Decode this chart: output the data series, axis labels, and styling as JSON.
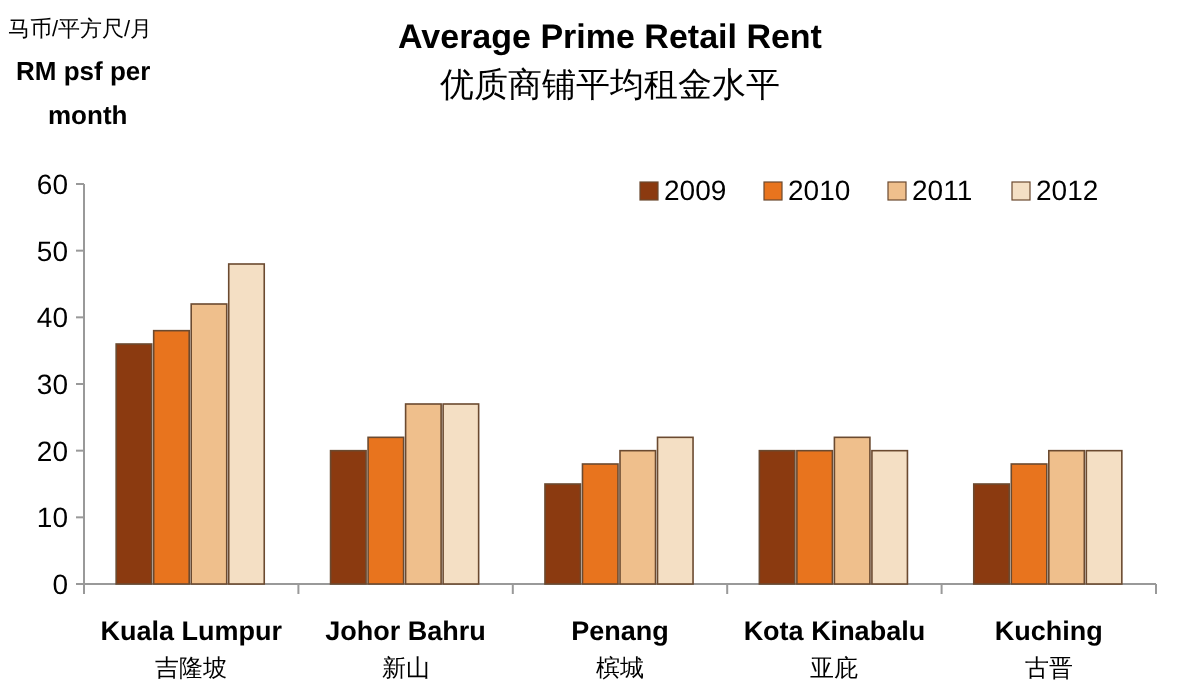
{
  "chart_data": {
    "type": "bar",
    "title": "Average Prime Retail Rent",
    "subtitle": "优质商铺平均租金水平",
    "ylabel": "马币/平方尺/月\nRM psf per\nmonth",
    "categories": [
      "Kuala Lumpur\n吉隆坡",
      "Johor Bahru\n新山",
      "Penang\n槟城",
      "Kota Kinabalu\n亚庇",
      "Kuching\n古晋"
    ],
    "series": [
      {
        "name": "2009",
        "color": "#8b3a10",
        "values": [
          36,
          20,
          15,
          20,
          15
        ]
      },
      {
        "name": "2010",
        "color": "#e8741e",
        "values": [
          38,
          22,
          18,
          20,
          18
        ]
      },
      {
        "name": "2011",
        "color": "#efbf8c",
        "values": [
          42,
          27,
          20,
          22,
          20
        ]
      },
      {
        "name": "2012",
        "color": "#f4dfc4",
        "values": [
          48,
          27,
          22,
          20,
          20
        ]
      }
    ],
    "ylim": [
      0,
      60
    ],
    "yticks": [
      0,
      10,
      20,
      30,
      40,
      50,
      60
    ],
    "grid": false,
    "legend": "top right"
  }
}
